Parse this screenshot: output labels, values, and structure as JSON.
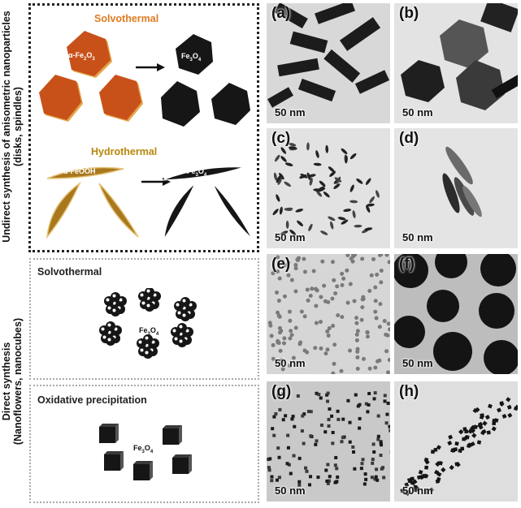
{
  "side_labels": {
    "indirect": "Undirect synthesis of anisometric nanoparticles",
    "indirect_sub": "(disks, spindles)",
    "direct": "Direct synthesis",
    "direct_sub": "(Nanoflowers, nanocubes)"
  },
  "sections": {
    "solvothermal_1": "Solvothermal",
    "hydrothermal": "Hydrothermal",
    "solvothermal_2": "Solvothermal",
    "oxidative": "Oxidative precipitation"
  },
  "chem": {
    "hematite": "α-Fe",
    "hematite_sub1": "2",
    "hematite_o": "O",
    "hematite_sub2": "3",
    "goethite": "α-FeOOH",
    "magnetite": "Fe",
    "magnetite_sub1": "3",
    "magnetite_o": "O",
    "magnetite_sub2": "4"
  },
  "panels": [
    {
      "label": "(a)",
      "scale": "50 nm"
    },
    {
      "label": "(b)",
      "scale": "50 nm"
    },
    {
      "label": "(c)",
      "scale": "50 nm"
    },
    {
      "label": "(d)",
      "scale": "50 nm"
    },
    {
      "label": "(e)",
      "scale": "50 nm"
    },
    {
      "label": "(f)",
      "scale": "50 nm"
    },
    {
      "label": "(g)",
      "scale": "50 nm"
    },
    {
      "label": "(h)",
      "scale": "50 nm"
    }
  ],
  "colors": {
    "hematite_orange": "#c8511a",
    "goethite_gold": "#a9781d",
    "magnetite_black": "#161616",
    "title_orange": "#e07a20"
  }
}
